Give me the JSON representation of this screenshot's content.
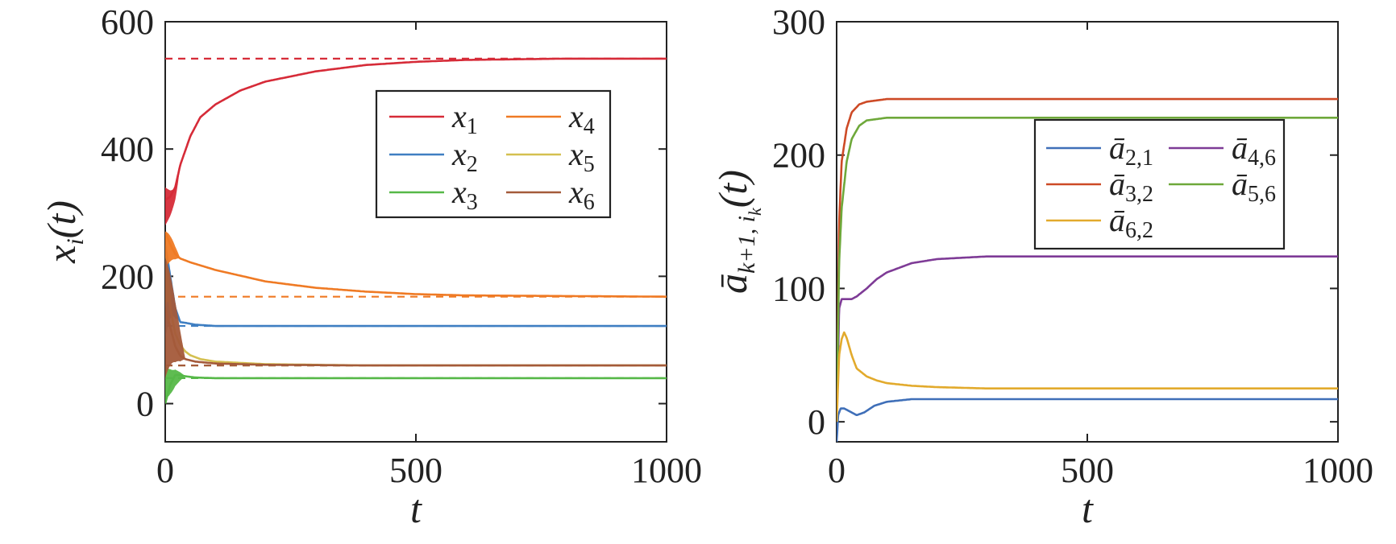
{
  "chart_data": [
    {
      "type": "line",
      "xlabel": "t",
      "ylabel": "x_i(t)",
      "xlim": [
        0,
        1000
      ],
      "ylim": [
        -60,
        600
      ],
      "xticks": [
        "0",
        "500",
        "1000"
      ],
      "yticks": [
        "0",
        "200",
        "400",
        "600"
      ],
      "grid": false,
      "legend_placement": "top-right",
      "legend_columns": 2,
      "series": [
        {
          "name": "x1",
          "color": "#d62b38",
          "x": [
            0,
            10,
            20,
            30,
            50,
            70,
            100,
            150,
            200,
            300,
            400,
            500,
            600,
            700,
            800,
            1000
          ],
          "y": [
            320,
            325,
            340,
            375,
            420,
            450,
            470,
            492,
            506,
            522,
            532,
            537,
            540,
            541,
            542,
            542
          ],
          "oscillation_until": 30,
          "band_lo": 280,
          "band_hi": 340,
          "steady_state": 542
        },
        {
          "name": "x2",
          "color": "#3f7fc2",
          "x": [
            0,
            10,
            20,
            30,
            40,
            60,
            100,
            200,
            400,
            1000
          ],
          "y": [
            250,
            200,
            150,
            128,
            127,
            124,
            122,
            122,
            122,
            122
          ],
          "oscillation_until": 30,
          "band_lo": 100,
          "band_hi": 150,
          "steady_state": 122
        },
        {
          "name": "x3",
          "color": "#56b848",
          "x": [
            0,
            10,
            20,
            30,
            40,
            60,
            100,
            200,
            400,
            1000
          ],
          "y": [
            0,
            30,
            45,
            45,
            43,
            41,
            40,
            40,
            40,
            40
          ],
          "oscillation_until": 40,
          "band_lo": 10,
          "band_hi": 62,
          "steady_state": 40
        },
        {
          "name": "x4",
          "color": "#ef7a24",
          "x": [
            0,
            10,
            20,
            30,
            50,
            100,
            200,
            300,
            400,
            500,
            600,
            800,
            1000
          ],
          "y": [
            270,
            250,
            235,
            228,
            222,
            210,
            192,
            182,
            176,
            172,
            170,
            169,
            168
          ],
          "oscillation_until": 30,
          "band_lo": 210,
          "band_hi": 270,
          "steady_state": 168
        },
        {
          "name": "x5",
          "color": "#d4c050",
          "x": [
            0,
            5,
            10,
            20,
            30,
            40,
            50,
            70,
            100,
            200,
            400,
            1000
          ],
          "y": [
            210,
            180,
            150,
            110,
            92,
            82,
            76,
            70,
            66,
            62,
            60,
            60
          ],
          "oscillation_until": 15,
          "band_lo": 150,
          "band_hi": 230,
          "steady_state": 60
        },
        {
          "name": "x6",
          "color": "#a45a3a",
          "x": [
            0,
            10,
            20,
            30,
            40,
            60,
            100,
            200,
            400,
            1000
          ],
          "y": [
            150,
            120,
            90,
            75,
            70,
            66,
            63,
            61,
            60,
            60
          ],
          "oscillation_until": 40,
          "band_lo": 40,
          "band_hi": 230,
          "steady_state": 60
        }
      ]
    },
    {
      "type": "line",
      "xlabel": "t",
      "ylabel": "ā_{k+1, i_k}(t)",
      "xlim": [
        0,
        1000
      ],
      "ylim": [
        -15,
        300
      ],
      "xticks": [
        "0",
        "500",
        "1000"
      ],
      "yticks": [
        "0",
        "100",
        "200",
        "300"
      ],
      "grid": false,
      "legend_placement": "top-right",
      "legend_columns": 2,
      "series": [
        {
          "name": "ā2,1",
          "color": "#3f6fb8",
          "x": [
            0,
            3,
            8,
            15,
            25,
            40,
            55,
            75,
            100,
            150,
            200,
            300,
            500,
            1000
          ],
          "y": [
            -15,
            5,
            10,
            10,
            8,
            5,
            7,
            12,
            15,
            17,
            17,
            17,
            17,
            17
          ]
        },
        {
          "name": "ā3,2",
          "color": "#cd4a26",
          "x": [
            0,
            5,
            10,
            20,
            30,
            45,
            60,
            80,
            100,
            150,
            300,
            500,
            1000
          ],
          "y": [
            0,
            150,
            195,
            220,
            232,
            238,
            240,
            241,
            242,
            242,
            242,
            242,
            242
          ]
        },
        {
          "name": "ā4,6",
          "color": "#7e3b96",
          "x": [
            0,
            5,
            10,
            20,
            30,
            40,
            60,
            80,
            100,
            150,
            200,
            300,
            400,
            600,
            1000
          ],
          "y": [
            0,
            85,
            92,
            92,
            92,
            94,
            100,
            107,
            112,
            119,
            122,
            124,
            124,
            124,
            124
          ]
        },
        {
          "name": "ā5,6",
          "color": "#6ea83a",
          "x": [
            0,
            5,
            10,
            20,
            30,
            45,
            60,
            80,
            100,
            150,
            300,
            500,
            1000
          ],
          "y": [
            0,
            120,
            160,
            195,
            212,
            222,
            226,
            227,
            228,
            228,
            228,
            228,
            228
          ]
        },
        {
          "name": "ā6,2",
          "color": "#e2aa2c",
          "x": [
            0,
            5,
            10,
            15,
            20,
            30,
            40,
            60,
            80,
            100,
            150,
            200,
            300,
            500,
            1000
          ],
          "y": [
            0,
            50,
            62,
            67,
            63,
            50,
            40,
            34,
            31,
            29,
            27,
            26,
            25,
            25,
            25
          ]
        }
      ]
    }
  ]
}
